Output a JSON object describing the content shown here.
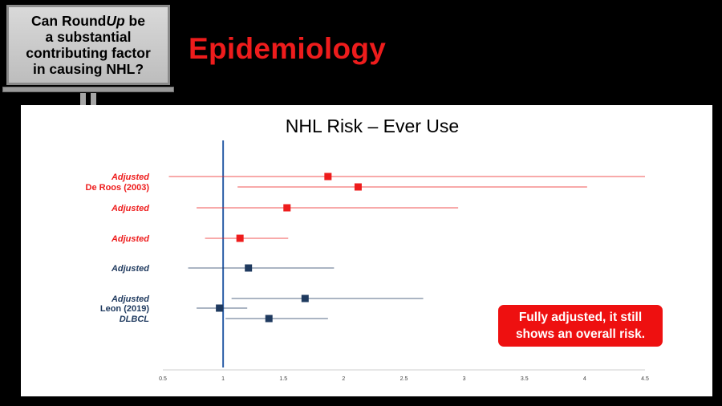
{
  "sign": {
    "line1": "Can Round",
    "line1_italic": "Up",
    "line1_end": " be",
    "line2": "a substantial",
    "line3": "contributing factor",
    "line4": "in causing NHL?"
  },
  "slide_title": "Epidemiology",
  "callout": {
    "line1": "Fully adjusted, it still",
    "line2": "shows an overall risk."
  },
  "colors": {
    "red": "#ee1c1c",
    "navy": "#1f3a5f"
  },
  "chart_data": {
    "type": "scatter",
    "subtype": "forest-plot",
    "title": "NHL Risk – Ever Use",
    "xlim": [
      0.5,
      4.5
    ],
    "reference_line": 1,
    "xticks": [
      0.5,
      1,
      1.5,
      2,
      2.5,
      3,
      3.5,
      4,
      4.5
    ],
    "xtick_labels": [
      "0.5",
      "1",
      "1.5",
      "2",
      "2.5",
      "3",
      "3.5",
      "4",
      "4.5"
    ],
    "rows": [
      {
        "label": "Adjusted",
        "style": "italic",
        "color": "#ee1c1c",
        "estimate": 1.87,
        "low": 0.55,
        "high": 4.5
      },
      {
        "label": "De Roos (2003)",
        "style": "normal",
        "color": "#ee1c1c",
        "estimate": 2.12,
        "low": 1.12,
        "high": 4.02
      },
      {
        "label": "Adjusted",
        "style": "italic",
        "color": "#ee1c1c",
        "estimate": 1.53,
        "low": 0.78,
        "high": 2.95
      },
      {
        "label": "Adjusted",
        "style": "italic",
        "color": "#ee1c1c",
        "estimate": 1.14,
        "low": 0.85,
        "high": 1.54
      },
      {
        "label": "Adjusted",
        "style": "italic",
        "color": "#1f3a5f",
        "estimate": 1.21,
        "low": 0.71,
        "high": 1.92
      },
      {
        "label": "Adjusted",
        "style": "italic",
        "color": "#1f3a5f",
        "estimate": 1.68,
        "low": 1.07,
        "high": 2.66
      },
      {
        "label": "Leon (2019)",
        "style": "normal",
        "color": "#1f3a5f",
        "estimate": 0.97,
        "low": 0.78,
        "high": 1.2
      },
      {
        "label": "DLBCL",
        "style": "italic",
        "color": "#1f3a5f",
        "estimate": 1.38,
        "low": 1.02,
        "high": 1.87
      }
    ]
  }
}
